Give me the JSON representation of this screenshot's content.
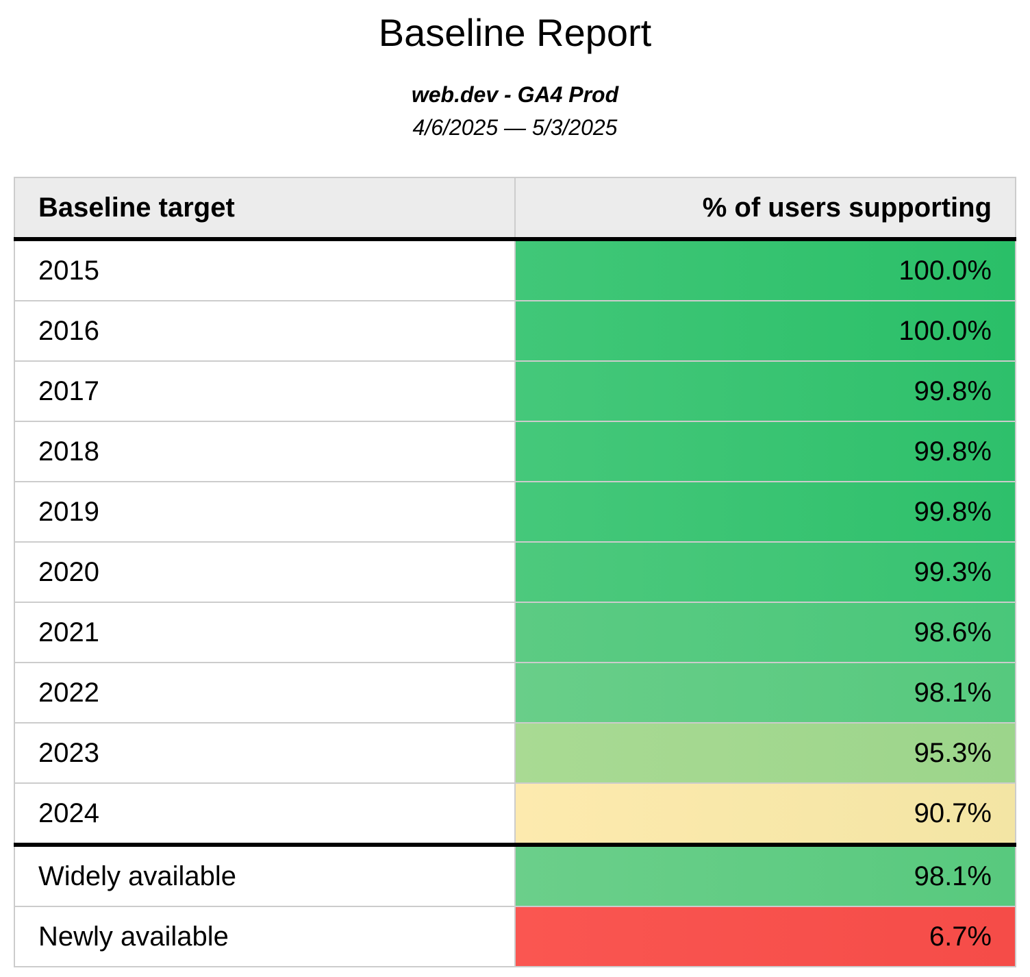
{
  "page": {
    "title": "Baseline Report",
    "subtitle": "web.dev - GA4 Prod",
    "date_range": "4/6/2025 — 5/3/2025"
  },
  "table": {
    "columns": [
      "Baseline target",
      "% of users supporting"
    ],
    "rows": [
      {
        "label": "2015",
        "value": "100.0%",
        "color_left": "#41c778",
        "color_right": "#2abf68",
        "divider_below": false
      },
      {
        "label": "2016",
        "value": "100.0%",
        "color_left": "#41c778",
        "color_right": "#2abf68",
        "divider_below": false
      },
      {
        "label": "2017",
        "value": "99.8%",
        "color_left": "#45c87a",
        "color_right": "#2ec06b",
        "divider_below": false
      },
      {
        "label": "2018",
        "value": "99.8%",
        "color_left": "#45c87a",
        "color_right": "#2ec06b",
        "divider_below": false
      },
      {
        "label": "2019",
        "value": "99.8%",
        "color_left": "#45c87a",
        "color_right": "#2ec06b",
        "divider_below": false
      },
      {
        "label": "2020",
        "value": "99.3%",
        "color_left": "#4dc97d",
        "color_right": "#37c371",
        "divider_below": false
      },
      {
        "label": "2021",
        "value": "98.6%",
        "color_left": "#5ccb83",
        "color_right": "#49c77a",
        "divider_below": false
      },
      {
        "label": "2022",
        "value": "98.1%",
        "color_left": "#69ce89",
        "color_right": "#56c97e",
        "divider_below": false
      },
      {
        "label": "2023",
        "value": "95.3%",
        "color_left": "#a9da93",
        "color_right": "#9cd58b",
        "divider_below": false
      },
      {
        "label": "2024",
        "value": "90.7%",
        "color_left": "#fdeaae",
        "color_right": "#f3e5a4",
        "divider_below": true
      },
      {
        "label": "Widely available",
        "value": "98.1%",
        "color_left": "#6bcf8a",
        "color_right": "#58c97e",
        "divider_below": false
      },
      {
        "label": "Newly available",
        "value": "6.7%",
        "color_left": "#fa5651",
        "color_right": "#f54c48",
        "divider_below": false
      }
    ],
    "header_background": "#ececec",
    "grid_line_color": "#cccccc",
    "section_divider_color": "#000000"
  },
  "chart_data": {
    "type": "table",
    "title": "Baseline Report",
    "subtitle": "web.dev - GA4 Prod",
    "date_range": "4/6/2025 — 5/3/2025",
    "columns": [
      "Baseline target",
      "% of users supporting"
    ],
    "categories": [
      "2015",
      "2016",
      "2017",
      "2018",
      "2019",
      "2020",
      "2021",
      "2022",
      "2023",
      "2024",
      "Widely available",
      "Newly available"
    ],
    "values": [
      100.0,
      100.0,
      99.8,
      99.8,
      99.8,
      99.3,
      98.6,
      98.1,
      95.3,
      90.7,
      98.1,
      6.7
    ],
    "value_unit": "%",
    "layout_hints": {
      "value_column_color_coding": "green (high) through yellow (~90%) to red (low)",
      "thick_divider_after_category": "2024",
      "grid": true
    }
  }
}
